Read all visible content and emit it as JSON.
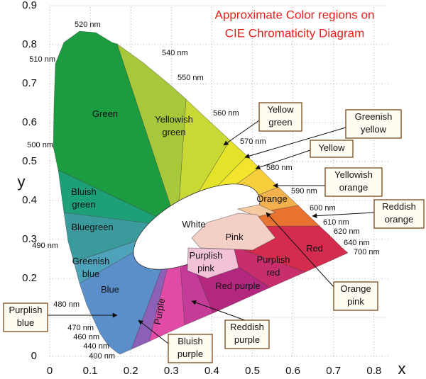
{
  "title": [
    "Approximate Color regions on",
    "CIE Chromaticity Diagram"
  ],
  "axes": {
    "x_label": "x",
    "y_label": "y",
    "xticks": [
      0,
      0.1,
      0.2,
      0.3,
      0.4,
      0.5,
      0.6,
      0.7,
      0.8
    ],
    "yticks": [
      0,
      0.1,
      0.2,
      0.3,
      0.4,
      0.5,
      0.6,
      0.7,
      0.8,
      0.9
    ]
  },
  "wavelengths": [
    "520 nm",
    "540 nm",
    "550 nm",
    "560 nm",
    "570 nm",
    "580 nm",
    "590 nm",
    "600 nm",
    "610 nm",
    "620 nm",
    "640 nm",
    "700 nm",
    "510 nm",
    "500 nm",
    "490 nm",
    "480 nm",
    "470 nm",
    "460 nm",
    "440 nm",
    "400 nm"
  ],
  "regions": [
    {
      "lines": [
        "Green"
      ]
    },
    {
      "lines": [
        "Yellowish",
        "green"
      ]
    },
    {
      "lines": [
        "Bluish",
        "green"
      ]
    },
    {
      "lines": [
        "Bluegreen"
      ]
    },
    {
      "lines": [
        "Greenish",
        "blue"
      ]
    },
    {
      "lines": [
        "Blue"
      ]
    },
    {
      "lines": [
        "Purple"
      ]
    },
    {
      "lines": [
        "Red purple"
      ]
    },
    {
      "lines": [
        "Purplish",
        "pink"
      ]
    },
    {
      "lines": [
        "Pink"
      ]
    },
    {
      "lines": [
        "White"
      ]
    },
    {
      "lines": [
        "Orange"
      ]
    },
    {
      "lines": [
        "Red"
      ]
    },
    {
      "lines": [
        "Purplish",
        "red"
      ]
    }
  ],
  "callouts": [
    {
      "lines": [
        "Yellow",
        "green"
      ]
    },
    {
      "lines": [
        "Greenish",
        "yellow"
      ]
    },
    {
      "lines": [
        "Yellow"
      ]
    },
    {
      "lines": [
        "Yellowish",
        "orange"
      ]
    },
    {
      "lines": [
        "Reddish",
        "orange"
      ]
    },
    {
      "lines": [
        "Orange",
        "pink"
      ]
    },
    {
      "lines": [
        "Reddish",
        "purple"
      ]
    },
    {
      "lines": [
        "Bluish",
        "purple"
      ]
    },
    {
      "lines": [
        "Purplish",
        "blue"
      ]
    }
  ]
}
